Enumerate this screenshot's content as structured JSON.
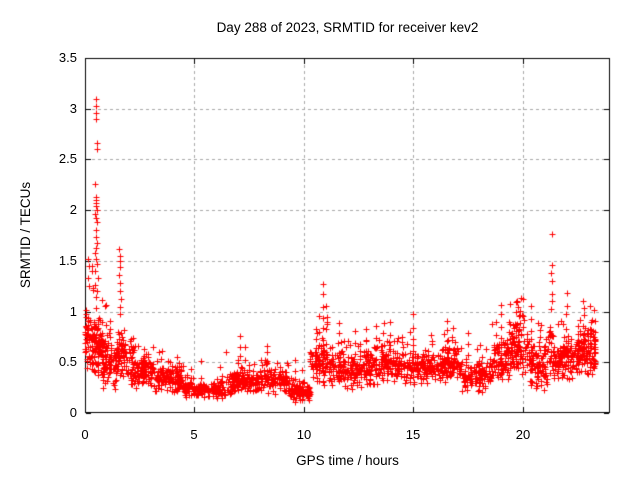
{
  "colors": {
    "marker": "#ff0000",
    "grid": "#a9a9a9",
    "axis": "#000000",
    "background": "#ffffff",
    "text": "#000000"
  },
  "chart_data": {
    "type": "scatter",
    "title": "Day 288 of 2023, SRMTID for receiver kev2",
    "xlabel": "GPS time / hours",
    "ylabel": "SRMTID / TECUs",
    "xlim": [
      0,
      24
    ],
    "ylim": [
      0,
      3.5
    ],
    "xticks": [
      0,
      5,
      10,
      15,
      20
    ],
    "xtick_labels": [
      "0",
      "5",
      "10",
      "15",
      "20"
    ],
    "yticks": [
      0,
      0.5,
      1,
      1.5,
      2,
      2.5,
      3,
      3.5
    ],
    "ytick_labels": [
      "0",
      "0.5",
      "1",
      "1.5",
      "2",
      "2.5",
      "3",
      "3.5"
    ],
    "grid": true,
    "legend": false,
    "marker": {
      "shape": "plus",
      "color": "#ff0000",
      "size": 7
    },
    "series_name": "SRMTID",
    "data_time_range_hours": [
      0,
      23.35
    ],
    "seed": 20230288,
    "band_segments": [
      {
        "t0": 0.0,
        "t1": 0.35,
        "n": 60,
        "lo": 0.4,
        "hi": 1.05,
        "tail": 1.5
      },
      {
        "t0": 0.35,
        "t1": 0.8,
        "n": 80,
        "lo": 0.35,
        "hi": 1.0,
        "tail": 1.6
      },
      {
        "t0": 0.8,
        "t1": 1.5,
        "n": 90,
        "lo": 0.22,
        "hi": 0.8,
        "tail": 1.1
      },
      {
        "t0": 1.5,
        "t1": 1.85,
        "n": 45,
        "lo": 0.3,
        "hi": 0.9,
        "tail": 0
      },
      {
        "t0": 1.85,
        "t1": 3.0,
        "n": 115,
        "lo": 0.22,
        "hi": 0.62,
        "tail": 0.75
      },
      {
        "t0": 3.0,
        "t1": 4.5,
        "n": 135,
        "lo": 0.18,
        "hi": 0.5,
        "tail": 0.65
      },
      {
        "t0": 4.5,
        "t1": 6.4,
        "n": 160,
        "lo": 0.13,
        "hi": 0.33,
        "tail": 0.45
      },
      {
        "t0": 6.4,
        "t1": 7.5,
        "n": 100,
        "lo": 0.18,
        "hi": 0.45,
        "tail": 0.6
      },
      {
        "t0": 7.5,
        "t1": 9.3,
        "n": 150,
        "lo": 0.18,
        "hi": 0.45,
        "tail": 0.55
      },
      {
        "t0": 9.3,
        "t1": 10.3,
        "n": 90,
        "lo": 0.1,
        "hi": 0.32,
        "tail": 0.45
      },
      {
        "t0": 10.3,
        "t1": 11.4,
        "n": 100,
        "lo": 0.25,
        "hi": 0.72,
        "tail": 0.9
      },
      {
        "t0": 11.4,
        "t1": 12.3,
        "n": 90,
        "lo": 0.22,
        "hi": 0.6,
        "tail": 0.75
      },
      {
        "t0": 12.3,
        "t1": 13.5,
        "n": 110,
        "lo": 0.22,
        "hi": 0.65,
        "tail": 0.8
      },
      {
        "t0": 13.5,
        "t1": 14.3,
        "n": 80,
        "lo": 0.28,
        "hi": 0.7,
        "tail": 0.85
      },
      {
        "t0": 14.3,
        "t1": 15.5,
        "n": 110,
        "lo": 0.25,
        "hi": 0.65,
        "tail": 0.8
      },
      {
        "t0": 15.5,
        "t1": 16.4,
        "n": 90,
        "lo": 0.28,
        "hi": 0.6,
        "tail": 0.72
      },
      {
        "t0": 16.4,
        "t1": 17.2,
        "n": 80,
        "lo": 0.3,
        "hi": 0.68,
        "tail": 0.8
      },
      {
        "t0": 17.2,
        "t1": 18.6,
        "n": 120,
        "lo": 0.2,
        "hi": 0.55,
        "tail": 0.68
      },
      {
        "t0": 18.6,
        "t1": 19.4,
        "n": 80,
        "lo": 0.3,
        "hi": 0.75,
        "tail": 0.95
      },
      {
        "t0": 19.4,
        "t1": 20.3,
        "n": 100,
        "lo": 0.35,
        "hi": 0.95,
        "tail": 1.15
      },
      {
        "t0": 20.3,
        "t1": 21.15,
        "n": 100,
        "lo": 0.2,
        "hi": 0.7,
        "tail": 0.95
      },
      {
        "t0": 21.15,
        "t1": 21.55,
        "n": 40,
        "lo": 0.3,
        "hi": 0.9,
        "tail": 0
      },
      {
        "t0": 21.55,
        "t1": 22.5,
        "n": 100,
        "lo": 0.3,
        "hi": 0.8,
        "tail": 1.0
      },
      {
        "t0": 22.5,
        "t1": 23.35,
        "n": 115,
        "lo": 0.35,
        "hi": 0.9,
        "tail": 1.05
      }
    ],
    "streaks": [
      {
        "t": 0.95,
        "base": 0.45,
        "top": 1.05,
        "n": 4
      },
      {
        "t": 1.15,
        "base": 0.4,
        "top": 0.9,
        "n": 4
      },
      {
        "t": 2.2,
        "base": 0.35,
        "top": 0.72,
        "n": 4
      },
      {
        "t": 3.5,
        "base": 0.3,
        "top": 0.62,
        "n": 4
      },
      {
        "t": 4.2,
        "base": 0.25,
        "top": 0.55,
        "n": 4
      },
      {
        "t": 5.3,
        "base": 0.2,
        "top": 0.5,
        "n": 3
      },
      {
        "t": 6.2,
        "base": 0.2,
        "top": 0.45,
        "n": 3
      },
      {
        "t": 7.1,
        "base": 0.35,
        "top": 0.78,
        "n": 5
      },
      {
        "t": 7.3,
        "base": 0.3,
        "top": 0.65,
        "n": 4
      },
      {
        "t": 8.3,
        "base": 0.3,
        "top": 0.68,
        "n": 5
      },
      {
        "t": 9.6,
        "base": 0.25,
        "top": 0.52,
        "n": 4
      },
      {
        "t": 10.55,
        "base": 0.4,
        "top": 0.82,
        "n": 5
      },
      {
        "t": 10.7,
        "base": 0.4,
        "top": 0.95,
        "n": 5
      },
      {
        "t": 10.87,
        "base": 0.5,
        "top": 1.28,
        "n": 8
      },
      {
        "t": 11.05,
        "base": 0.45,
        "top": 1.05,
        "n": 6
      },
      {
        "t": 11.6,
        "base": 0.4,
        "top": 0.9,
        "n": 6
      },
      {
        "t": 12.35,
        "base": 0.35,
        "top": 0.8,
        "n": 5
      },
      {
        "t": 12.85,
        "base": 0.38,
        "top": 0.82,
        "n": 5
      },
      {
        "t": 13.3,
        "base": 0.4,
        "top": 0.85,
        "n": 5
      },
      {
        "t": 13.65,
        "base": 0.4,
        "top": 0.88,
        "n": 6
      },
      {
        "t": 13.95,
        "base": 0.42,
        "top": 0.9,
        "n": 5
      },
      {
        "t": 15.0,
        "base": 0.4,
        "top": 0.97,
        "n": 6
      },
      {
        "t": 15.85,
        "base": 0.35,
        "top": 0.78,
        "n": 5
      },
      {
        "t": 16.55,
        "base": 0.4,
        "top": 0.92,
        "n": 6
      },
      {
        "t": 16.8,
        "base": 0.4,
        "top": 0.85,
        "n": 5
      },
      {
        "t": 17.5,
        "base": 0.35,
        "top": 0.78,
        "n": 5
      },
      {
        "t": 19.0,
        "base": 0.45,
        "top": 1.07,
        "n": 7
      },
      {
        "t": 19.7,
        "base": 0.5,
        "top": 1.1,
        "n": 6
      },
      {
        "t": 19.9,
        "base": 0.5,
        "top": 1.15,
        "n": 6
      },
      {
        "t": 20.4,
        "base": 0.5,
        "top": 1.05,
        "n": 6
      },
      {
        "t": 22.0,
        "base": 0.5,
        "top": 1.18,
        "n": 7
      },
      {
        "t": 22.8,
        "base": 0.5,
        "top": 1.1,
        "n": 6
      },
      {
        "t": 23.1,
        "base": 0.5,
        "top": 1.05,
        "n": 5
      }
    ],
    "outliers": [
      [
        0.5,
        3.1
      ],
      [
        0.52,
        3.03
      ],
      [
        0.48,
        2.96
      ],
      [
        0.51,
        2.9
      ],
      [
        0.55,
        2.66
      ],
      [
        0.53,
        2.6
      ],
      [
        0.47,
        2.26
      ],
      [
        0.5,
        2.13
      ],
      [
        0.52,
        2.1
      ],
      [
        0.49,
        2.07
      ],
      [
        0.51,
        2.04
      ],
      [
        0.53,
        2.0
      ],
      [
        0.46,
        1.96
      ],
      [
        0.5,
        1.92
      ],
      [
        0.54,
        1.88
      ],
      [
        0.48,
        1.8
      ],
      [
        0.52,
        1.74
      ],
      [
        0.55,
        1.68
      ],
      [
        0.5,
        1.63
      ],
      [
        0.45,
        1.58
      ],
      [
        0.49,
        1.52
      ],
      [
        0.56,
        1.47
      ],
      [
        0.44,
        1.4
      ],
      [
        0.58,
        1.33
      ],
      [
        0.47,
        1.26
      ],
      [
        0.53,
        1.2
      ],
      [
        0.51,
        1.14
      ],
      [
        0.13,
        1.52
      ],
      [
        0.16,
        1.45
      ],
      [
        0.14,
        1.33
      ],
      [
        0.17,
        1.25
      ],
      [
        1.57,
        1.62
      ],
      [
        1.6,
        1.55
      ],
      [
        1.58,
        1.5
      ],
      [
        1.62,
        1.44
      ],
      [
        1.56,
        1.36
      ],
      [
        1.59,
        1.28
      ],
      [
        1.61,
        1.2
      ],
      [
        1.63,
        1.12
      ],
      [
        1.58,
        1.05
      ],
      [
        1.6,
        0.98
      ],
      [
        21.33,
        1.76
      ],
      [
        21.34,
        1.46
      ],
      [
        21.32,
        1.38
      ],
      [
        21.35,
        1.3
      ],
      [
        21.33,
        1.17
      ],
      [
        21.36,
        1.1
      ],
      [
        21.31,
        1.03
      ]
    ]
  }
}
